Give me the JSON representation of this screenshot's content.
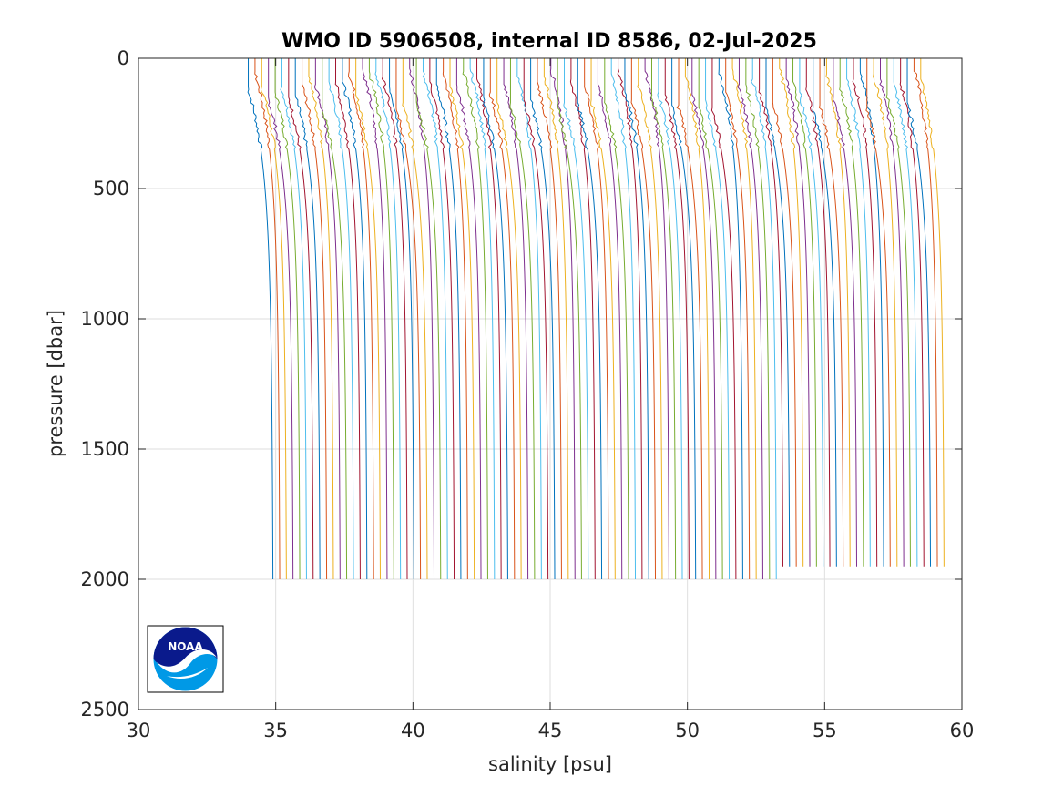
{
  "chart_data": {
    "type": "line",
    "title": "WMO ID 5906508, internal ID 8586, 02-Jul-2025",
    "xlabel": "salinity [psu]",
    "ylabel": "pressure [dbar]",
    "xlim": [
      30,
      60
    ],
    "ylim": [
      0,
      2500
    ],
    "y_reversed": true,
    "grid": true,
    "x_ticks": [
      30,
      35,
      40,
      45,
      50,
      55,
      60
    ],
    "y_ticks": [
      0,
      500,
      1000,
      1500,
      2000,
      2500
    ],
    "profiles": {
      "count": 101,
      "deep_salinity_start": 34.93,
      "deep_salinity_step": 0.2445,
      "surface_salinity_start": 34.0,
      "surface_salinity_step": 0.245,
      "max_pressure_first": 2000,
      "max_pressure_last": 1950
    },
    "color_order": [
      "#0072bd",
      "#d95319",
      "#edb120",
      "#7e2f8e",
      "#77ac30",
      "#4dbeee",
      "#a2142f"
    ],
    "logo": {
      "name": "noaa-logo",
      "text": "NOAA",
      "colors": {
        "navy": "#0a1a8c",
        "sky": "#0099e6"
      }
    }
  }
}
